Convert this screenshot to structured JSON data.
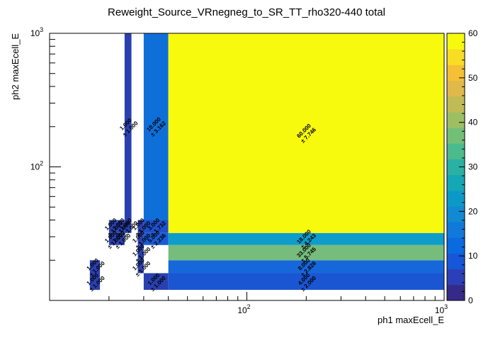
{
  "chart_data": {
    "type": "heatmap",
    "title": "Reweight_Source_VRnegneg_to_SR_TT_rho320-440 total",
    "xlabel": "ph1 maxEcell_E",
    "ylabel": "ph2 maxEcell_E",
    "x_scale": "log",
    "y_scale": "log",
    "xlim": [
      10,
      1000
    ],
    "ylim": [
      10,
      1000
    ],
    "x_ticks": [
      {
        "value": 100,
        "base": "10",
        "exp": "2"
      },
      {
        "value": 1000,
        "base": "10",
        "exp": "3"
      }
    ],
    "y_ticks": [
      {
        "value": 100,
        "base": "10",
        "exp": "2"
      },
      {
        "value": 1000,
        "base": "10",
        "exp": "3"
      }
    ],
    "zlim": [
      0,
      60
    ],
    "z_ticks": [
      "0",
      "10",
      "20",
      "30",
      "40",
      "50",
      "60"
    ],
    "palette": [
      "#352a87",
      "#2d3fb8",
      "#1557d8",
      "#0a6ae0",
      "#1079d9",
      "#118ad2",
      "#0b9ac8",
      "#14a7b6",
      "#2ab1a4",
      "#4bbb8d",
      "#74bf78",
      "#9dbf62",
      "#c0bb55",
      "#dfb94a",
      "#f5c035",
      "#f9dd23",
      "#f8fa0d"
    ],
    "cells": [
      {
        "x0": 16,
        "x1": 18,
        "y0": 12,
        "y1": 16,
        "value": 1.0,
        "label": "1.000",
        "err": "± 1.000",
        "color": "#2a40b0"
      },
      {
        "x0": 16,
        "x1": 18,
        "y0": 16,
        "y1": 20,
        "value": 1.0,
        "label": "1.000",
        "err": "± 1.000",
        "color": "#2a40b0"
      },
      {
        "x0": 20,
        "x1": 22,
        "y0": 26,
        "y1": 32,
        "value": 1.0,
        "label": "1.000",
        "err": "± 1.000",
        "color": "#2a40b0"
      },
      {
        "x0": 20,
        "x1": 22,
        "y0": 32,
        "y1": 40,
        "value": 1.0,
        "label": "1.000",
        "err": "± 1.000",
        "color": "#2a40b0"
      },
      {
        "x0": 22,
        "x1": 24,
        "y0": 26,
        "y1": 32,
        "value": 1.0,
        "label": "1.000",
        "err": "± 1.000",
        "color": "#2a40b0"
      },
      {
        "x0": 22,
        "x1": 24,
        "y0": 32,
        "y1": 40,
        "value": 1.0,
        "label": "1.000",
        "err": "± 1.000",
        "color": "#2a40b0"
      },
      {
        "x0": 24,
        "x1": 26,
        "y0": 32,
        "y1": 40,
        "value": 1.0,
        "label": "1.000",
        "err": "± 1.000",
        "color": "#2a40b0"
      },
      {
        "x0": 24,
        "x1": 26,
        "y0": 40,
        "y1": 1000,
        "value": 1.0,
        "label": "1.000",
        "err": "± 1.000",
        "color": "#2a40b0"
      },
      {
        "x0": 28,
        "x1": 30,
        "y0": 16,
        "y1": 20,
        "value": 1.0,
        "label": "1.000",
        "err": "± 1.000",
        "color": "#2a40b0"
      },
      {
        "x0": 28,
        "x1": 30,
        "y0": 20,
        "y1": 26,
        "value": 1.0,
        "label": "1.000",
        "err": "± 1.000",
        "color": "#2a40b0"
      },
      {
        "x0": 28,
        "x1": 30,
        "y0": 26,
        "y1": 32,
        "value": 1.0,
        "label": "1.000",
        "err": "± 1.000",
        "color": "#2a40b0"
      },
      {
        "x0": 28,
        "x1": 30,
        "y0": 32,
        "y1": 40,
        "value": 1.0,
        "label": "1.000",
        "err": "± 1.000",
        "color": "#2a40b0"
      },
      {
        "x0": 30,
        "x1": 40,
        "y0": 12,
        "y1": 16,
        "value": 1.0,
        "label": "1.000",
        "err": "± 1.000",
        "color": "#2a40b0"
      },
      {
        "x0": 30,
        "x1": 40,
        "y0": 26,
        "y1": 32,
        "value": 5.0,
        "label": "5.000",
        "err": "± 2.236",
        "color": "#1a5ad6"
      },
      {
        "x0": 30,
        "x1": 40,
        "y0": 32,
        "y1": 40,
        "value": 3.0,
        "label": "3.000",
        "err": "± 1.732",
        "color": "#1e50cc"
      },
      {
        "x0": 30,
        "x1": 40,
        "y0": 40,
        "y1": 1000,
        "value": 10.0,
        "label": "10.000",
        "err": "± 3.162",
        "color": "#0f6fd8"
      },
      {
        "x0": 40,
        "x1": 1000,
        "y0": 12,
        "y1": 16,
        "value": 4.0,
        "label": "4.000",
        "err": "± 2.000",
        "color": "#1a55d2"
      },
      {
        "x0": 40,
        "x1": 1000,
        "y0": 16,
        "y1": 20,
        "value": 8.0,
        "label": "8.000",
        "err": "± 2.828",
        "color": "#1667da"
      },
      {
        "x0": 40,
        "x1": 1000,
        "y0": 20,
        "y1": 26,
        "value": 33.0,
        "label": "33.000",
        "err": "± 5.745",
        "color": "#76bc7c"
      },
      {
        "x0": 40,
        "x1": 1000,
        "y0": 26,
        "y1": 32,
        "value": 18.0,
        "label": "18.000",
        "err": "± 4.243",
        "color": "#0e9ccb"
      },
      {
        "x0": 40,
        "x1": 1000,
        "y0": 32,
        "y1": 1000,
        "value": 60.0,
        "label": "60.000",
        "err": "± 7.746",
        "color": "#f8fa0d"
      }
    ]
  }
}
